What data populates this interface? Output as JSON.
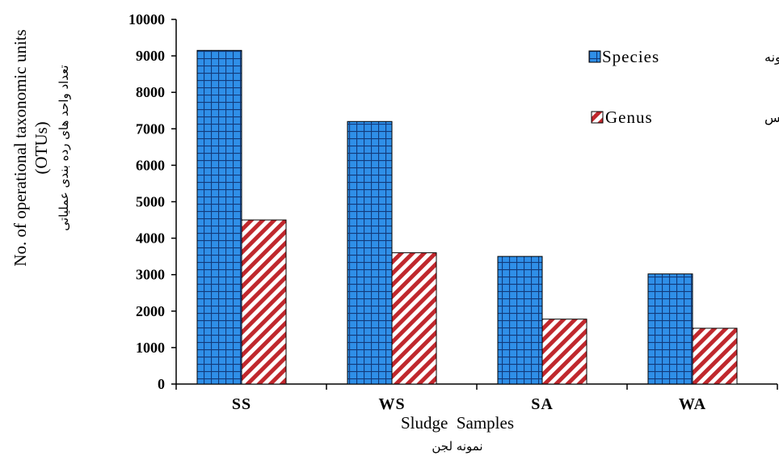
{
  "chart_data": {
    "type": "bar",
    "categories": [
      "SS",
      "WS",
      "SA",
      "WA"
    ],
    "series": [
      {
        "name": "Species",
        "name_fa": "گونه",
        "values": [
          9150,
          7200,
          3500,
          3020
        ],
        "color": "#2f8fe8",
        "pattern": "grid"
      },
      {
        "name": "Genus",
        "name_fa": "جنس",
        "values": [
          4500,
          3600,
          1780,
          1530
        ],
        "color": "#c0282d",
        "pattern": "diagonal"
      }
    ],
    "ylim": [
      0,
      10000
    ],
    "yticks": [
      "0",
      "1000",
      "2000",
      "3000",
      "4000",
      "5000",
      "6000",
      "7000",
      "8000",
      "9000",
      "10000"
    ],
    "ylabel_line1": "No. of operational taxonomic units",
    "ylabel_line2": "(OTUs)",
    "ylabel_fa": "تعداد واحد های رده بندی عملیاتی",
    "xlabel": "Sludge  Samples",
    "xlabel_fa": "نمونه لجن",
    "legend_position": "top-right",
    "grid": false
  }
}
